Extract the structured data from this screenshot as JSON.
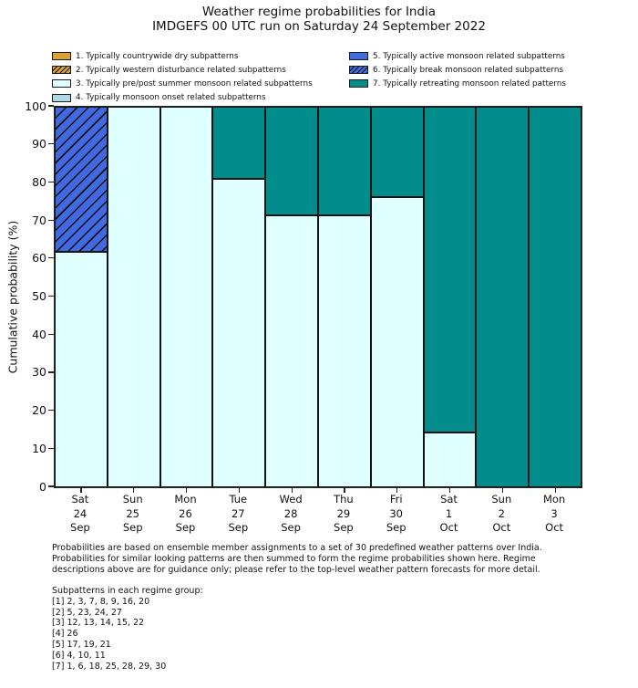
{
  "colors": {
    "gold": "#dba233",
    "lightcyan": "#e0ffff",
    "lightblue": "#add8e6",
    "royalblue": "#4169e1",
    "teal": "#028c8c",
    "edge": "#141414"
  },
  "legend": {
    "items": [
      {
        "label": "1. Typically countrywide dry subpatterns",
        "color": "gold",
        "hatch": false,
        "column": "left"
      },
      {
        "label": "2. Typically western disturbance related subpatterns",
        "color": "gold",
        "hatch": true,
        "column": "left"
      },
      {
        "label": "3. Typically pre/post summer monsoon related subpatterns",
        "color": "lightcyan",
        "hatch": false,
        "column": "left"
      },
      {
        "label": "4. Typically monsoon onset related subpatterns",
        "color": "lightblue",
        "hatch": false,
        "column": "left"
      },
      {
        "label": "5. Typically active monsoon related subpatterns",
        "color": "royalblue",
        "hatch": false,
        "column": "right"
      },
      {
        "label": "6. Typically break monsoon related subpatterns",
        "color": "royalblue",
        "hatch": true,
        "column": "right"
      },
      {
        "label": "7. Typically retreating monsoon related patterns",
        "color": "teal",
        "hatch": false,
        "column": "right"
      }
    ]
  },
  "chart_data": {
    "type": "bar",
    "stacked": true,
    "title": "Weather regime probabilities for India",
    "subtitle": "IMDGEFS 00 UTC run on Saturday 24 September 2022",
    "ylabel": "Cumulative probability (%)",
    "ylim": [
      0,
      100
    ],
    "yticks": [
      0,
      10,
      20,
      30,
      40,
      50,
      60,
      70,
      80,
      90,
      100
    ],
    "grid": false,
    "legend_position": "top, two columns, no frame",
    "categories": [
      "Sat\n24\nSep",
      "Sun\n25\nSep",
      "Mon\n26\nSep",
      "Tue\n27\nSep",
      "Wed\n28\nSep",
      "Thu\n29\nSep",
      "Fri\n30\nSep",
      "Sat\n1\nOct",
      "Sun\n2\nOct",
      "Mon\n3\nOct"
    ],
    "series": [
      {
        "name": "3. Typically pre/post summer monsoon related subpatterns",
        "regime": 3,
        "color": "lightcyan",
        "hatch": false,
        "values": [
          61.9,
          100,
          100,
          81.0,
          71.4,
          71.4,
          76.2,
          14.3,
          0,
          0
        ]
      },
      {
        "name": "6. Typically break monsoon related subpatterns",
        "regime": 6,
        "color": "royalblue",
        "hatch": true,
        "values": [
          38.1,
          0,
          0,
          0,
          0,
          0,
          0,
          0,
          0,
          0
        ]
      },
      {
        "name": "7. Typically retreating monsoon related patterns",
        "regime": 7,
        "color": "teal",
        "hatch": false,
        "values": [
          0,
          0,
          0,
          19.0,
          28.6,
          28.6,
          23.8,
          85.7,
          100,
          100
        ]
      }
    ]
  },
  "footnote": "Probabilities are based on ensemble member assignments to a set of 30 predefined weather patterns over India.\nProbabilities for similar looking patterns are then summed to form the regime probabilities shown here. Regime\ndescriptions above are for guidance only; please refer to the top-level weather pattern forecasts for more detail.",
  "subpatterns": {
    "heading": "Subpatterns in each regime group:",
    "lines": [
      "[1] 2, 3, 7, 8, 9, 16, 20",
      "[2] 5, 23, 24, 27",
      "[3] 12, 13, 14, 15, 22",
      "[4] 26",
      "[5] 17, 19, 21",
      "[6] 4, 10, 11",
      "[7] 1, 6, 18, 25, 28, 29, 30"
    ]
  }
}
